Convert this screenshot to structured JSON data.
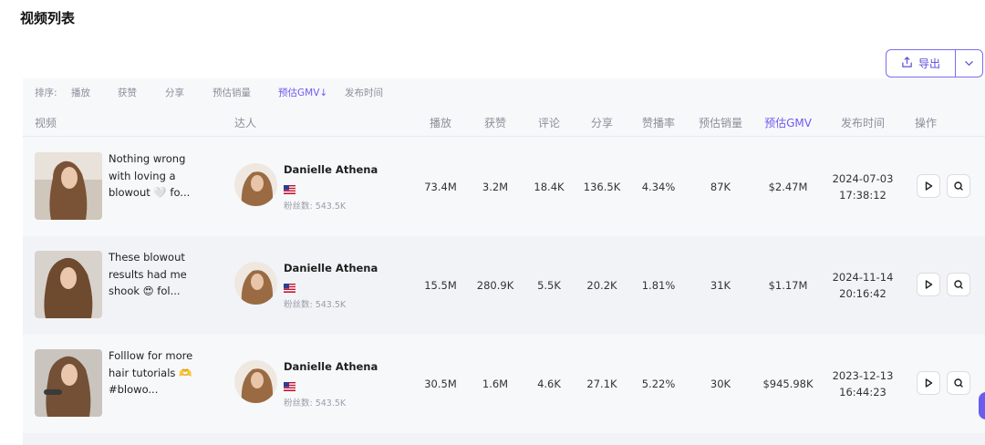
{
  "page": {
    "title": "视频列表"
  },
  "toolbar": {
    "export_label": "导出"
  },
  "sort": {
    "label": "排序:",
    "items": [
      "播放",
      "获赞",
      "分享",
      "预估销量",
      "预估GMV↓",
      "发布时间"
    ]
  },
  "table": {
    "headers": {
      "video": "视频",
      "creator": "达人",
      "plays": "播放",
      "likes": "获赞",
      "comments": "评论",
      "shares": "分享",
      "like_rate": "赞播率",
      "est_sales": "预估销量",
      "est_gmv": "预估GMV",
      "publish_time": "发布时间",
      "actions": "操作"
    },
    "rows": [
      {
        "video_title": "Nothing wrong with loving a blowout 🤍 fo...",
        "creator_name": "Danielle Athena",
        "followers": "粉丝数: 543.5K",
        "plays": "73.4M",
        "likes": "3.2M",
        "comments": "18.4K",
        "shares": "136.5K",
        "like_rate": "4.34%",
        "est_sales": "87K",
        "est_gmv": "$2.47M",
        "date": "2024-07-03",
        "time": "17:38:12"
      },
      {
        "video_title": "These blowout results had me shook 😍 fol...",
        "creator_name": "Danielle Athena",
        "followers": "粉丝数: 543.5K",
        "plays": "15.5M",
        "likes": "280.9K",
        "comments": "5.5K",
        "shares": "20.2K",
        "like_rate": "1.81%",
        "est_sales": "31K",
        "est_gmv": "$1.17M",
        "date": "2024-11-14",
        "time": "20:16:42"
      },
      {
        "video_title": "Folllow for more hair tutorials 🫶 #blowo...",
        "creator_name": "Danielle Athena",
        "followers": "粉丝数: 543.5K",
        "plays": "30.5M",
        "likes": "1.6M",
        "comments": "4.6K",
        "shares": "27.1K",
        "like_rate": "5.22%",
        "est_sales": "30K",
        "est_gmv": "$945.98K",
        "date": "2023-12-13",
        "time": "16:44:23"
      }
    ]
  },
  "colors": {
    "accent": "#6b5cf0",
    "border": "#7b6cf0",
    "muted": "#8a8f99"
  },
  "icons": {
    "export": "export-icon",
    "caret": "chevron-down-icon",
    "play": "play-icon",
    "search": "search-icon",
    "flag": "us-flag-icon"
  }
}
